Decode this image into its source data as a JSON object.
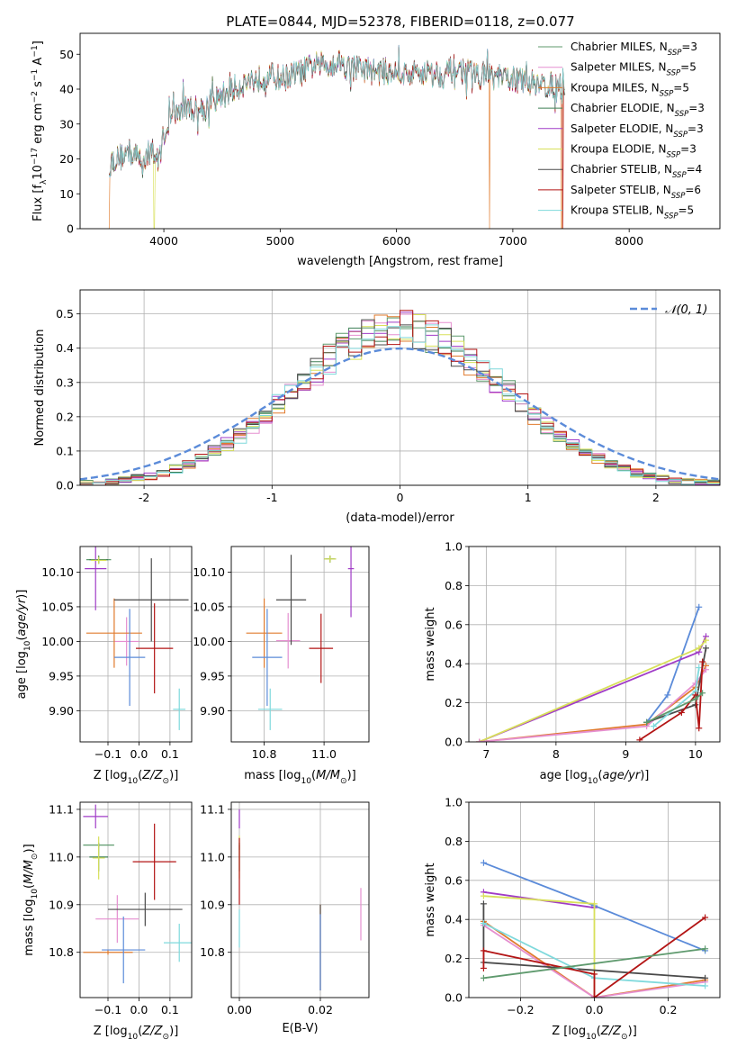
{
  "figure": {
    "title": "PLATE=0844, MJD=52378, FIBERID=0118, z=0.077"
  },
  "colors": {
    "Chabrier MILES": "#5f9a6e",
    "Salpeter MILES": "#e58fd0",
    "Kroupa MILES": "#e07b2e",
    "Chabrier ELODIE": "#3d7f55",
    "Salpeter ELODIE": "#a03bc7",
    "Kroupa ELODIE": "#d8e05a",
    "Chabrier STELIB": "#4a4a4a",
    "Salpeter STELIB": "#b31515",
    "Kroupa STELIB": "#7fd9dc",
    "Normal": "#5b8bd9"
  },
  "chart_data": [
    {
      "id": "spectrum",
      "type": "line",
      "title": "PLATE=0844, MJD=52378, FIBERID=0118, z=0.077",
      "xlabel": "wavelength [Angstrom, rest frame]",
      "ylabel": "Flux [f_λ 10^-17 erg cm^-2 s^-1 A^-1]",
      "xlim": [
        3280,
        8780
      ],
      "ylim": [
        0,
        56
      ],
      "xticks": [
        4000,
        5000,
        6000,
        7000,
        8000
      ],
      "yticks": [
        0,
        10,
        20,
        30,
        40,
        50
      ],
      "grid": false,
      "legend_position": "top-right",
      "legend": [
        {
          "model": "Chabrier MILES",
          "label": "Chabrier MILES, N",
          "sub": "SSP",
          "suffix": "=3"
        },
        {
          "model": "Salpeter MILES",
          "label": "Salpeter MILES, N",
          "sub": "SSP",
          "suffix": "=5"
        },
        {
          "model": "Kroupa MILES",
          "label": "Kroupa MILES, N",
          "sub": "SSP",
          "suffix": "=5"
        },
        {
          "model": "Chabrier ELODIE",
          "label": "Chabrier ELODIE, N",
          "sub": "SSP",
          "suffix": "=3"
        },
        {
          "model": "Salpeter ELODIE",
          "label": "Salpeter ELODIE, N",
          "sub": "SSP",
          "suffix": "=3"
        },
        {
          "model": "Kroupa ELODIE",
          "label": "Kroupa ELODIE, N",
          "sub": "SSP",
          "suffix": "=3"
        },
        {
          "model": "Chabrier STELIB",
          "label": "Chabrier STELIB, N",
          "sub": "SSP",
          "suffix": "=4"
        },
        {
          "model": "Salpeter STELIB",
          "label": "Salpeter STELIB, N",
          "sub": "SSP",
          "suffix": "=6"
        },
        {
          "model": "Kroupa STELIB",
          "label": "Kroupa STELIB, N",
          "sub": "SSP",
          "suffix": "=5"
        }
      ],
      "spectrum_envelope": {
        "wavelength": [
          3530,
          3600,
          3700,
          3800,
          3900,
          3950,
          4000,
          4050,
          4100,
          4200,
          4300,
          4400,
          4500,
          4600,
          4700,
          4800,
          4900,
          5000,
          5100,
          5200,
          5300,
          5400,
          5500,
          5600,
          5700,
          5800,
          5900,
          6000,
          6100,
          6200,
          6300,
          6400,
          6500,
          6600,
          6700,
          6800,
          6900,
          7000,
          7100,
          7200,
          7300,
          7400,
          7450
        ],
        "flux": [
          19,
          20,
          22,
          20,
          22,
          19,
          27,
          31,
          33,
          35,
          34,
          36,
          38,
          40,
          42,
          43,
          44,
          43,
          44,
          45,
          47,
          47,
          48,
          46,
          46,
          45,
          45,
          45,
          44,
          45,
          45,
          44,
          46,
          45,
          44,
          44,
          43,
          43,
          42,
          42,
          41,
          41,
          40
        ]
      },
      "dropouts": [
        {
          "model": "Kroupa MILES",
          "wavelength": 3530
        },
        {
          "model": "Kroupa ELODIE",
          "wavelength": 3915
        },
        {
          "model": "Kroupa MILES",
          "wavelength": 6800
        },
        {
          "model": "Kroupa MILES",
          "wavelength": 7420
        },
        {
          "model": "Salpeter STELIB",
          "wavelength": 7430
        }
      ]
    },
    {
      "id": "residuals",
      "type": "area",
      "xlabel": "(data-model)/error",
      "ylabel": "Normed distribution",
      "xlim": [
        -2.5,
        2.5
      ],
      "ylim": [
        0,
        0.57
      ],
      "xticks": [
        -2,
        -1,
        0,
        1,
        2
      ],
      "yticks": [
        0.0,
        0.1,
        0.2,
        0.3,
        0.4,
        0.5
      ],
      "grid": true,
      "legend_position": "top-right",
      "normal_label": "𝒩(0, 1)",
      "bin_width": 0.1,
      "bin_start": -2.5
    },
    {
      "id": "age_vs_Z",
      "type": "scatter",
      "xlabel": "Z [log10(Z/Z⊙)]",
      "ylabel": "age  [log10(age/yr)]",
      "xlim": [
        -0.19,
        0.17
      ],
      "ylim": [
        9.855,
        10.137
      ],
      "xticks": [
        -0.1,
        0.0,
        0.1
      ],
      "xticklabels": [
        "−0.1",
        "0.0",
        "0.1"
      ],
      "yticks": [
        9.9,
        9.95,
        10.0,
        10.05,
        10.1
      ],
      "yticklabels": [
        "9.90",
        "9.95",
        "10.00",
        "10.05",
        "10.10"
      ],
      "grid": true,
      "points": [
        {
          "model": "Chabrier MILES",
          "x": -0.13,
          "y": 10.118,
          "xerr": 0.04,
          "yerr": 0.006
        },
        {
          "model": "Salpeter MILES",
          "x": -0.04,
          "y": 10.0,
          "xerr": 0.04,
          "yerr": 0.035
        },
        {
          "model": "Kroupa MILES",
          "x": -0.08,
          "y": 10.012,
          "xerr": 0.09,
          "yerr": 0.05
        },
        {
          "model": "Chabrier ELODIE",
          "x": -0.13,
          "y": 10.118,
          "xerr": 0.03,
          "yerr": 0.005
        },
        {
          "model": "Salpeter ELODIE",
          "x": -0.14,
          "y": 10.105,
          "xerr": 0.035,
          "yerr": 0.06
        },
        {
          "model": "Kroupa ELODIE",
          "x": -0.13,
          "y": 10.117,
          "xerr": 0.025,
          "yerr": 0.005
        },
        {
          "model": "Chabrier STELIB",
          "x": 0.04,
          "y": 10.06,
          "xerr": 0.12,
          "yerr": 0.06
        },
        {
          "model": "Salpeter STELIB",
          "x": 0.05,
          "y": 9.99,
          "xerr": 0.06,
          "yerr": 0.065
        },
        {
          "model": "Kroupa STELIB",
          "x": 0.13,
          "y": 9.902,
          "xerr": 0.02,
          "yerr": 0.03
        },
        {
          "model": "Normal",
          "x": -0.03,
          "y": 9.977,
          "xerr": 0.05,
          "yerr": 0.07
        }
      ]
    },
    {
      "id": "age_vs_mass",
      "type": "scatter",
      "xlabel": "mass [log10(M/M⊙)]",
      "xlim": [
        10.69,
        11.15
      ],
      "ylim": [
        9.855,
        10.137
      ],
      "xticks": [
        10.8,
        11.0
      ],
      "xticklabels": [
        "10.8",
        "11.0"
      ],
      "yticks": [
        9.9,
        9.95,
        10.0,
        10.05,
        10.1
      ],
      "yticklabels": [
        "9.90",
        "9.95",
        "10.00",
        "10.05",
        "10.10"
      ],
      "grid": true,
      "points": [
        {
          "model": "Chabrier MILES",
          "x": 11.02,
          "y": 10.119,
          "xerr": 0.02,
          "yerr": 0.005
        },
        {
          "model": "Salpeter MILES",
          "x": 10.88,
          "y": 10.001,
          "xerr": 0.04,
          "yerr": 0.04
        },
        {
          "model": "Kroupa MILES",
          "x": 10.8,
          "y": 10.012,
          "xerr": 0.06,
          "yerr": 0.05
        },
        {
          "model": "Chabrier ELODIE",
          "x": 11.02,
          "y": 10.119,
          "xerr": 0.015,
          "yerr": 0.005
        },
        {
          "model": "Salpeter ELODIE",
          "x": 11.09,
          "y": 10.105,
          "xerr": 0.01,
          "yerr": 0.07
        },
        {
          "model": "Kroupa ELODIE",
          "x": 11.02,
          "y": 10.119,
          "xerr": 0.02,
          "yerr": 0.005
        },
        {
          "model": "Chabrier STELIB",
          "x": 10.89,
          "y": 10.06,
          "xerr": 0.05,
          "yerr": 0.065
        },
        {
          "model": "Salpeter STELIB",
          "x": 10.99,
          "y": 9.99,
          "xerr": 0.04,
          "yerr": 0.05
        },
        {
          "model": "Kroupa STELIB",
          "x": 10.82,
          "y": 9.902,
          "xerr": 0.04,
          "yerr": 0.03
        },
        {
          "model": "Normal",
          "x": 10.81,
          "y": 9.977,
          "xerr": 0.05,
          "yerr": 0.07
        }
      ]
    },
    {
      "id": "weight_vs_age",
      "type": "line",
      "xlabel": "age  [log10(age/yr)]",
      "ylabel": "mass weight",
      "xlim": [
        6.75,
        10.35
      ],
      "ylim": [
        0,
        1
      ],
      "xticks": [
        7,
        8,
        9,
        10
      ],
      "yticks": [
        0.0,
        0.2,
        0.4,
        0.6,
        0.8,
        1.0
      ],
      "grid": true,
      "series": [
        {
          "model": "Normal",
          "x": [
            9.3,
            9.6,
            10.05
          ],
          "y": [
            0.1,
            0.24,
            0.69
          ]
        },
        {
          "model": "Salpeter ELODIE",
          "x": [
            6.9,
            10.05,
            10.15
          ],
          "y": [
            0.0,
            0.46,
            0.54
          ]
        },
        {
          "model": "Kroupa ELODIE",
          "x": [
            6.9,
            10.05,
            10.15
          ],
          "y": [
            0.0,
            0.48,
            0.52
          ]
        },
        {
          "model": "Kroupa MILES",
          "x": [
            6.9,
            9.3,
            10.0,
            10.15
          ],
          "y": [
            0.0,
            0.09,
            0.28,
            0.39
          ]
        },
        {
          "model": "Salpeter MILES",
          "x": [
            6.9,
            9.3,
            10.0,
            10.15
          ],
          "y": [
            0.0,
            0.08,
            0.3,
            0.37
          ]
        },
        {
          "model": "Chabrier STELIB",
          "x": [
            9.3,
            10.0,
            10.15
          ],
          "y": [
            0.1,
            0.19,
            0.48
          ]
        },
        {
          "model": "Kroupa STELIB",
          "x": [
            9.4,
            10.0,
            10.05
          ],
          "y": [
            0.08,
            0.26,
            0.38
          ]
        },
        {
          "model": "Salpeter STELIB",
          "x": [
            9.2,
            9.8,
            10.0,
            10.05,
            10.1
          ],
          "y": [
            0.01,
            0.15,
            0.24,
            0.07,
            0.41
          ]
        },
        {
          "model": "Chabrier MILES",
          "x": [
            9.3,
            10.0,
            10.1
          ],
          "y": [
            0.1,
            0.22,
            0.25
          ]
        }
      ]
    },
    {
      "id": "mass_vs_Z",
      "type": "scatter",
      "xlabel": "Z [log10(Z/Z⊙)]",
      "ylabel": "mass [log10(M/M⊙)]",
      "xlim": [
        -0.19,
        0.17
      ],
      "ylim": [
        10.705,
        11.115
      ],
      "xticks": [
        -0.1,
        0.0,
        0.1
      ],
      "xticklabels": [
        "−0.1",
        "0.0",
        "0.1"
      ],
      "yticks": [
        10.8,
        10.9,
        11.0,
        11.1
      ],
      "yticklabels": [
        "10.8",
        "10.9",
        "11.0",
        "11.1"
      ],
      "grid": true,
      "points": [
        {
          "model": "Chabrier MILES",
          "x": -0.13,
          "y": 11.025,
          "xerr": 0.05,
          "yerr": 0.005
        },
        {
          "model": "Salpeter MILES",
          "x": -0.07,
          "y": 10.87,
          "xerr": 0.07,
          "yerr": 0.05
        },
        {
          "model": "Kroupa MILES",
          "x": -0.1,
          "y": 10.8,
          "xerr": 0.08,
          "yerr": 0.005
        },
        {
          "model": "Chabrier ELODIE",
          "x": -0.13,
          "y": 11.0,
          "xerr": 0.03,
          "yerr": 0.03
        },
        {
          "model": "Salpeter ELODIE",
          "x": -0.14,
          "y": 11.085,
          "xerr": 0.04,
          "yerr": 0.025
        },
        {
          "model": "Kroupa ELODIE",
          "x": -0.13,
          "y": 10.998,
          "xerr": 0.02,
          "yerr": 0.045
        },
        {
          "model": "Chabrier STELIB",
          "x": 0.02,
          "y": 10.89,
          "xerr": 0.12,
          "yerr": 0.035
        },
        {
          "model": "Salpeter STELIB",
          "x": 0.05,
          "y": 10.99,
          "xerr": 0.07,
          "yerr": 0.08
        },
        {
          "model": "Kroupa STELIB",
          "x": 0.13,
          "y": 10.82,
          "xerr": 0.05,
          "yerr": 0.04
        },
        {
          "model": "Normal",
          "x": -0.05,
          "y": 10.805,
          "xerr": 0.07,
          "yerr": 0.07
        }
      ]
    },
    {
      "id": "mass_vs_ebv",
      "type": "scatter",
      "xlabel": "E(B-V)",
      "xlim": [
        -0.002,
        0.032
      ],
      "ylim": [
        10.705,
        11.115
      ],
      "xticks": [
        0.0,
        0.02
      ],
      "xticklabels": [
        "0.00",
        "0.02"
      ],
      "yticks": [
        10.8,
        10.9,
        11.0,
        11.1
      ],
      "yticklabels": [
        "10.8",
        "10.9",
        "11.0",
        "11.1"
      ],
      "grid": true,
      "points": [
        {
          "model": "Chabrier MILES",
          "x": 0.0,
          "y": 11.02,
          "xerr": 0.0,
          "yerr": 0.005
        },
        {
          "model": "Salpeter MILES",
          "x": 0.03,
          "y": 10.88,
          "xerr": 0.0,
          "yerr": 0.055
        },
        {
          "model": "Kroupa MILES",
          "x": 0.02,
          "y": 10.81,
          "xerr": 0.0,
          "yerr": 0.09
        },
        {
          "model": "Chabrier ELODIE",
          "x": 0.0,
          "y": 11.0,
          "xerr": 0.0,
          "yerr": 0.03
        },
        {
          "model": "Salpeter ELODIE",
          "x": 0.0,
          "y": 11.08,
          "xerr": 0.0,
          "yerr": 0.02
        },
        {
          "model": "Kroupa ELODIE",
          "x": 0.0,
          "y": 11.0,
          "xerr": 0.0,
          "yerr": 0.045
        },
        {
          "model": "Chabrier STELIB",
          "x": 0.02,
          "y": 10.81,
          "xerr": 0.0,
          "yerr": 0.09
        },
        {
          "model": "Salpeter STELIB",
          "x": 0.0,
          "y": 10.97,
          "xerr": 0.0,
          "yerr": 0.07
        },
        {
          "model": "Kroupa STELIB",
          "x": 0.0,
          "y": 10.85,
          "xerr": 0.0,
          "yerr": 0.04
        },
        {
          "model": "Normal",
          "x": 0.02,
          "y": 10.8,
          "xerr": 0.0,
          "yerr": 0.08
        }
      ]
    },
    {
      "id": "weight_vs_Z",
      "type": "line",
      "xlabel": "Z [log10(Z/Z⊙)]",
      "ylabel": "mass weight",
      "xlim": [
        -0.34,
        0.34
      ],
      "ylim": [
        0,
        1
      ],
      "xticks": [
        -0.2,
        0.0,
        0.2
      ],
      "xticklabels": [
        "−0.2",
        "0.0",
        "0.2"
      ],
      "yticks": [
        0.0,
        0.2,
        0.4,
        0.6,
        0.8,
        1.0
      ],
      "grid": true,
      "series": [
        {
          "model": "Normal",
          "x": [
            -0.3,
            0.0,
            0.3
          ],
          "y": [
            0.69,
            0.47,
            0.24
          ]
        },
        {
          "model": "Salpeter ELODIE",
          "x": [
            -0.3,
            0.0
          ],
          "y": [
            0.54,
            0.46
          ]
        },
        {
          "model": "Kroupa ELODIE",
          "x": [
            -0.3,
            0.0,
            0.0
          ],
          "y": [
            0.52,
            0.48,
            0.0
          ]
        },
        {
          "model": "Kroupa MILES",
          "x": [
            -0.3,
            0.0,
            0.3
          ],
          "y": [
            0.39,
            0.0,
            0.09
          ]
        },
        {
          "model": "Salpeter MILES",
          "x": [
            -0.3,
            0.0,
            0.3
          ],
          "y": [
            0.37,
            0.0,
            0.08
          ]
        },
        {
          "model": "Chabrier STELIB",
          "x": [
            -0.3,
            -0.3,
            0.3
          ],
          "y": [
            0.48,
            0.18,
            0.1
          ]
        },
        {
          "model": "Kroupa STELIB",
          "x": [
            -0.3,
            0.0,
            0.3
          ],
          "y": [
            0.38,
            0.1,
            0.06
          ]
        },
        {
          "model": "Salpeter STELIB",
          "x": [
            -0.3,
            -0.3,
            0.0,
            0.0,
            0.3
          ],
          "y": [
            0.15,
            0.24,
            0.12,
            0.0,
            0.41
          ]
        },
        {
          "model": "Chabrier MILES",
          "x": [
            -0.3,
            0.3
          ],
          "y": [
            0.1,
            0.25
          ]
        }
      ]
    }
  ]
}
